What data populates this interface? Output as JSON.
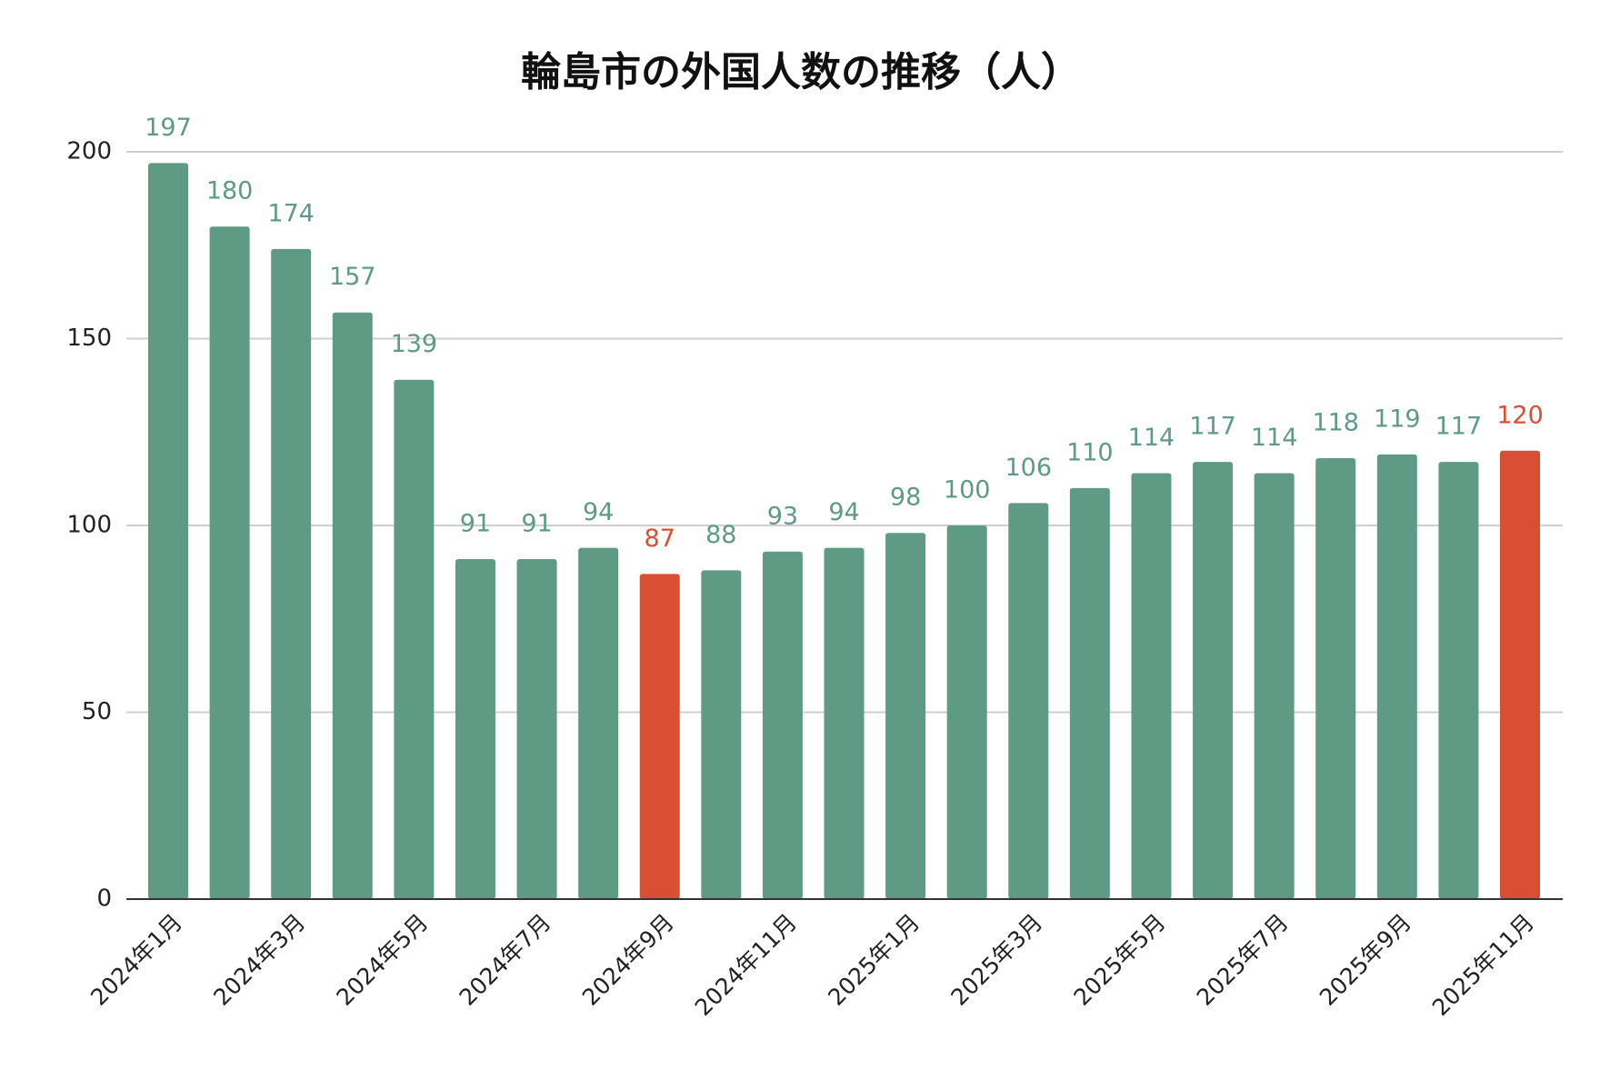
{
  "chart_data": {
    "type": "bar",
    "title": "輪島市の外国人数の推移（人）",
    "categories": [
      "2024年1月",
      null,
      "2024年3月",
      null,
      "2024年5月",
      null,
      "2024年7月",
      null,
      "2024年9月",
      null,
      "2024年11月",
      null,
      "2025年1月",
      null,
      "2025年3月",
      null,
      "2025年5月",
      null,
      "2025年7月",
      null,
      "2025年9月",
      null,
      "2025年11月"
    ],
    "values": [
      197,
      180,
      174,
      157,
      139,
      91,
      91,
      94,
      87,
      88,
      93,
      94,
      98,
      100,
      106,
      110,
      114,
      117,
      114,
      118,
      119,
      117,
      120
    ],
    "colors": [
      "#5f9a85",
      "#5f9a85",
      "#5f9a85",
      "#5f9a85",
      "#5f9a85",
      "#5f9a85",
      "#5f9a85",
      "#5f9a85",
      "#d94f33",
      "#5f9a85",
      "#5f9a85",
      "#5f9a85",
      "#5f9a85",
      "#5f9a85",
      "#5f9a85",
      "#5f9a85",
      "#5f9a85",
      "#5f9a85",
      "#5f9a85",
      "#5f9a85",
      "#5f9a85",
      "#5f9a85",
      "#d94f33"
    ],
    "ylim": [
      0,
      200
    ],
    "yticks": [
      0,
      50,
      100,
      150,
      200
    ],
    "grid": true
  }
}
